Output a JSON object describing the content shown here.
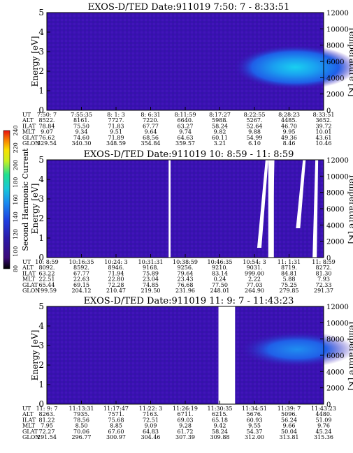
{
  "colors": {
    "background_plot": "#3a0fb0",
    "low": "#2a0f9a",
    "mid": "#1e5ef0",
    "high": "#18c8e8",
    "gap": "#ffffff"
  },
  "chart_data": [
    {
      "type": "heatmap",
      "title": "EXOS-D/TED   Date:911019   7:50: 7 - 8:33:51",
      "ylabel": "Energy [eV]",
      "ylabel_right": "Temperature [K]",
      "ylim": [
        0,
        5
      ],
      "yticks": [
        "0",
        "1",
        "2",
        "3",
        "4",
        "5"
      ],
      "ylim_right": [
        0,
        12000
      ],
      "yticks_right": [
        "0",
        "2000",
        "4000",
        "6000",
        "8000",
        "10000",
        "12000"
      ],
      "row_labels": [
        "UT",
        "ALT",
        "ILAT",
        "MLT",
        "GLAT",
        "GLON"
      ],
      "columns": [
        [
          "7:50: 7",
          "8522.",
          "78.84",
          "9.07",
          "76.62",
          "329.54"
        ],
        [
          "7:55:35",
          "8161.",
          "75.50",
          "9.34",
          "74.60",
          "340.30"
        ],
        [
          "8: 1: 3",
          "7727.",
          "71.83",
          "9.51",
          "71.89",
          "348.59"
        ],
        [
          "8: 6:31",
          "7220.",
          "67.77",
          "9.64",
          "68.56",
          "354.84"
        ],
        [
          "8:11:59",
          "6640.",
          "63.27",
          "9.74",
          "64.63",
          "359.57"
        ],
        [
          "8:17:27",
          "5988.",
          "58.24",
          "9.82",
          "60.11",
          "3.21"
        ],
        [
          "8:22:55",
          "5267.",
          "52.64",
          "9.88",
          "54.99",
          "6.10"
        ],
        [
          "8:28:23",
          "4485.",
          "46.70",
          "9.95",
          "49.36",
          "8.46"
        ],
        [
          "8:33:51",
          "3652.",
          "39.72",
          "10.01",
          "43.61",
          "10.46"
        ]
      ],
      "features": [
        {
          "label": "thermal band",
          "x_start": 0.68,
          "x_end": 1.0,
          "energy_center": 2.2,
          "intensity": "high"
        }
      ]
    },
    {
      "type": "heatmap",
      "title": "EXOS-D/TED   Date:911019   10: 8:59 - 11: 8:59",
      "ylabel": "Energy [eV]",
      "ylabel_right": "Temperature [K]",
      "ylim": [
        0,
        5
      ],
      "yticks": [
        "0",
        "1",
        "2",
        "3",
        "4",
        "5"
      ],
      "ylim_right": [
        0,
        12000
      ],
      "yticks_right": [
        "0",
        "2000",
        "4000",
        "6000",
        "8000",
        "10000",
        "12000"
      ],
      "row_labels": [
        "UT",
        "ALT",
        "ILAT",
        "MLT",
        "GLAT",
        "GLON"
      ],
      "columns": [
        [
          "10: 8:59",
          "8092.",
          "63.22",
          "22.51",
          "65.44",
          "199.59"
        ],
        [
          "10:16:35",
          "8592.",
          "67.77",
          "22.63",
          "69.15",
          "204.12"
        ],
        [
          "10:24: 3",
          "8946.",
          "71.94",
          "22.80",
          "72.28",
          "210.47"
        ],
        [
          "10:31:31",
          "9168.",
          "75.89",
          "23.04",
          "74.85",
          "219.50"
        ],
        [
          "10:38:59",
          "9256.",
          "79.64",
          "23.43",
          "76.68",
          "231.96"
        ],
        [
          "10:46:35",
          "9210.",
          "83.14",
          "0.24",
          "77.50",
          "248.01"
        ],
        [
          "10:54: 3",
          "9031.",
          "999.00",
          "2.22",
          "77.03",
          "264.90"
        ],
        [
          "11: 1:31",
          "8719.",
          "84.81",
          "5.88",
          "75.25",
          "279.85"
        ],
        [
          "11: 8:59",
          "8272.",
          "81.30",
          "7.93",
          "72.33",
          "291.37"
        ]
      ],
      "features": [
        {
          "label": "gap",
          "x_start": 0.44,
          "x_end": 0.447
        }
      ]
    },
    {
      "type": "heatmap",
      "title": "EXOS-D/TED   Date:911019   11: 9: 7 - 11:43:23",
      "ylabel": "Energy [eV]",
      "ylabel_right": "Temperature [K]",
      "ylim": [
        0,
        5
      ],
      "yticks": [
        "0",
        "1",
        "2",
        "3",
        "4",
        "5"
      ],
      "ylim_right": [
        0,
        12000
      ],
      "yticks_right": [
        "0",
        "2000",
        "4000",
        "6000",
        "8000",
        "10000",
        "12000"
      ],
      "row_labels": [
        "UT",
        "ALT",
        "ILAT",
        "MLT",
        "GLAT",
        "GLON"
      ],
      "columns": [
        [
          "11: 9: 7",
          "8263.",
          "81.22",
          "7.95",
          "72.27",
          "291.54"
        ],
        [
          "11:13:31",
          "7935.",
          "78.56",
          "8.50",
          "70.06",
          "296.77"
        ],
        [
          "11:17:47",
          "7571.",
          "75.68",
          "8.85",
          "67.60",
          "300.97"
        ],
        [
          "11:22: 3",
          "7163.",
          "72.51",
          "9.09",
          "64.83",
          "304.46"
        ],
        [
          "11:26:19",
          "6711.",
          "69.03",
          "9.28",
          "61.72",
          "307.39"
        ],
        [
          "11:30:35",
          "6215.",
          "65.18",
          "9.42",
          "58.24",
          "309.88"
        ],
        [
          "11:34:51",
          "5676.",
          "60.93",
          "9.55",
          "54.37",
          "312.00"
        ],
        [
          "11:39: 7",
          "5096.",
          "56.24",
          "9.66",
          "50.04",
          "313.81"
        ],
        [
          "11:43:23",
          "4480.",
          "51.09",
          "9.76",
          "45.24",
          "315.36"
        ]
      ],
      "features": [
        {
          "label": "gap",
          "x_start": 0.62,
          "x_end": 0.68
        },
        {
          "label": "thermal band",
          "x_start": 0.7,
          "x_end": 1.0,
          "energy_center": 2.8,
          "intensity": "mid"
        }
      ]
    }
  ],
  "colorbar": {
    "label": "Second Harmonic Current",
    "ticks": [
      "80",
      "100",
      "120",
      "140",
      "160",
      "180",
      "200",
      "220",
      "240"
    ]
  }
}
